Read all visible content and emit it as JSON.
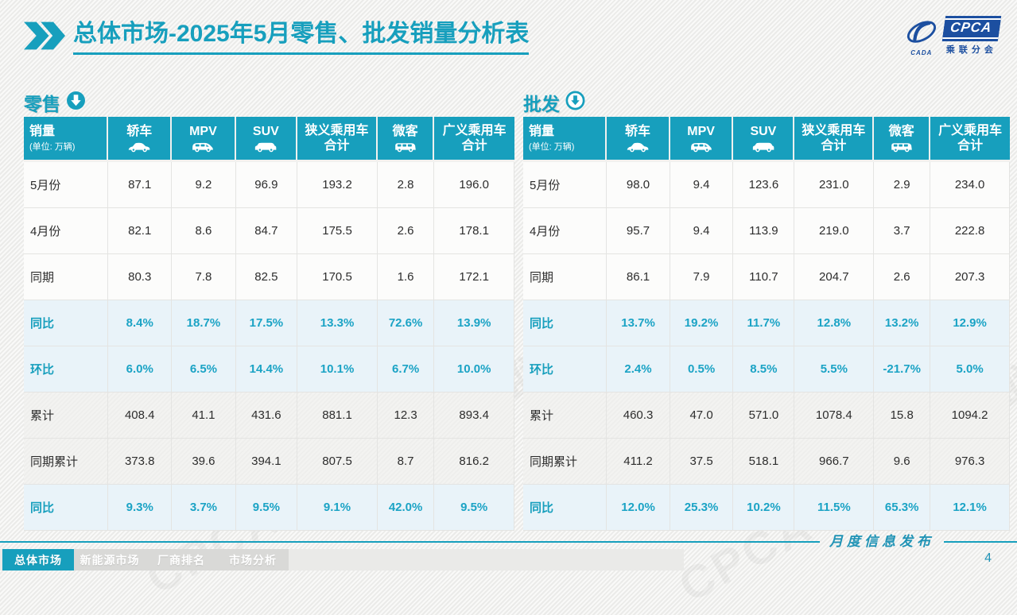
{
  "header": {
    "title": "总体市场-2025年5月零售、批发销量分析表",
    "logo": {
      "brand": "CPCA",
      "org": "CADA",
      "subtitle": "乘联分会"
    }
  },
  "tables": {
    "columns": [
      {
        "key": "sales",
        "label": "销量",
        "sub": "(单位: 万辆)",
        "icon": null
      },
      {
        "key": "sedan",
        "label": "轿车",
        "icon": "sedan-icon"
      },
      {
        "key": "mpv",
        "label": "MPV",
        "icon": "mpv-icon"
      },
      {
        "key": "suv",
        "label": "SUV",
        "icon": "suv-icon"
      },
      {
        "key": "narrow-total",
        "label": "狭义乘用车\n合计",
        "icon": null
      },
      {
        "key": "microvan",
        "label": "微客",
        "icon": "microvan-icon"
      },
      {
        "key": "broad-total",
        "label": "广义乘用车\n合计",
        "icon": null
      }
    ],
    "retail": {
      "section_title": "零售",
      "rows": [
        {
          "label": "5月份",
          "type": "normal",
          "values": [
            "87.1",
            "9.2",
            "96.9",
            "193.2",
            "2.8",
            "196.0"
          ]
        },
        {
          "label": "4月份",
          "type": "normal",
          "values": [
            "82.1",
            "8.6",
            "84.7",
            "175.5",
            "2.6",
            "178.1"
          ]
        },
        {
          "label": "同期",
          "type": "normal",
          "values": [
            "80.3",
            "7.8",
            "82.5",
            "170.5",
            "1.6",
            "172.1"
          ]
        },
        {
          "label": "同比",
          "type": "percent",
          "values": [
            "8.4%",
            "18.7%",
            "17.5%",
            "13.3%",
            "72.6%",
            "13.9%"
          ]
        },
        {
          "label": "环比",
          "type": "percent",
          "values": [
            "6.0%",
            "6.5%",
            "14.4%",
            "10.1%",
            "6.7%",
            "10.0%"
          ]
        },
        {
          "label": "累计",
          "type": "subtotal",
          "values": [
            "408.4",
            "41.1",
            "431.6",
            "881.1",
            "12.3",
            "893.4"
          ]
        },
        {
          "label": "同期累计",
          "type": "subtotal",
          "values": [
            "373.8",
            "39.6",
            "394.1",
            "807.5",
            "8.7",
            "816.2"
          ]
        },
        {
          "label": "同比",
          "type": "percent",
          "values": [
            "9.3%",
            "3.7%",
            "9.5%",
            "9.1%",
            "42.0%",
            "9.5%"
          ]
        }
      ]
    },
    "wholesale": {
      "section_title": "批发",
      "rows": [
        {
          "label": "5月份",
          "type": "normal",
          "values": [
            "98.0",
            "9.4",
            "123.6",
            "231.0",
            "2.9",
            "234.0"
          ]
        },
        {
          "label": "4月份",
          "type": "normal",
          "values": [
            "95.7",
            "9.4",
            "113.9",
            "219.0",
            "3.7",
            "222.8"
          ]
        },
        {
          "label": "同期",
          "type": "normal",
          "values": [
            "86.1",
            "7.9",
            "110.7",
            "204.7",
            "2.6",
            "207.3"
          ]
        },
        {
          "label": "同比",
          "type": "percent",
          "values": [
            "13.7%",
            "19.2%",
            "11.7%",
            "12.8%",
            "13.2%",
            "12.9%"
          ]
        },
        {
          "label": "环比",
          "type": "percent",
          "values": [
            "2.4%",
            "0.5%",
            "8.5%",
            "5.5%",
            "-21.7%",
            "5.0%"
          ]
        },
        {
          "label": "累计",
          "type": "subtotal",
          "values": [
            "460.3",
            "47.0",
            "571.0",
            "1078.4",
            "15.8",
            "1094.2"
          ]
        },
        {
          "label": "同期累计",
          "type": "subtotal",
          "values": [
            "411.2",
            "37.5",
            "518.1",
            "966.7",
            "9.6",
            "976.3"
          ]
        },
        {
          "label": "同比",
          "type": "percent",
          "values": [
            "12.0%",
            "25.3%",
            "10.2%",
            "11.5%",
            "65.3%",
            "12.1%"
          ]
        }
      ]
    }
  },
  "footer": {
    "tabs": [
      {
        "label": "总体市场",
        "active": true
      },
      {
        "label": "新能源市场",
        "active": false
      },
      {
        "label": "厂商排名",
        "active": false
      },
      {
        "label": "市场分析",
        "active": false
      }
    ],
    "publish_label": "月度信息发布",
    "page_number": "4"
  },
  "watermark": "CPCA 乘联分会",
  "colors": {
    "accent_teal": "#179fbd",
    "logo_blue": "#1c4fa0",
    "percent_text": "#1ba3c5",
    "percent_row_bg": "#e9f3f9"
  }
}
